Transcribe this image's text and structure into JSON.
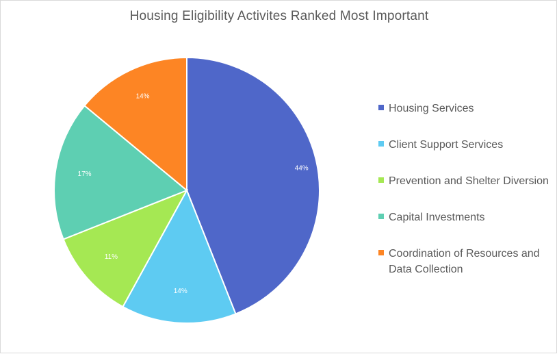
{
  "chart_data": {
    "type": "pie",
    "title": "Housing Eligibility Activites Ranked Most Important",
    "categories": [
      "Housing Services",
      "Client Support Services",
      "Prevention and Shelter Diversion",
      "Capital Investments",
      "Coordination of Resources and Data Collection"
    ],
    "values": [
      44,
      14,
      11,
      17,
      14
    ],
    "data_labels": [
      "44%",
      "14%",
      "11%",
      "17%",
      "14%"
    ],
    "colors": [
      "#4F67C9",
      "#5ECBF2",
      "#A5E853",
      "#5ECFB2",
      "#FD8524"
    ],
    "legend_position": "right",
    "start_angle": "12 o'clock, clockwise"
  }
}
